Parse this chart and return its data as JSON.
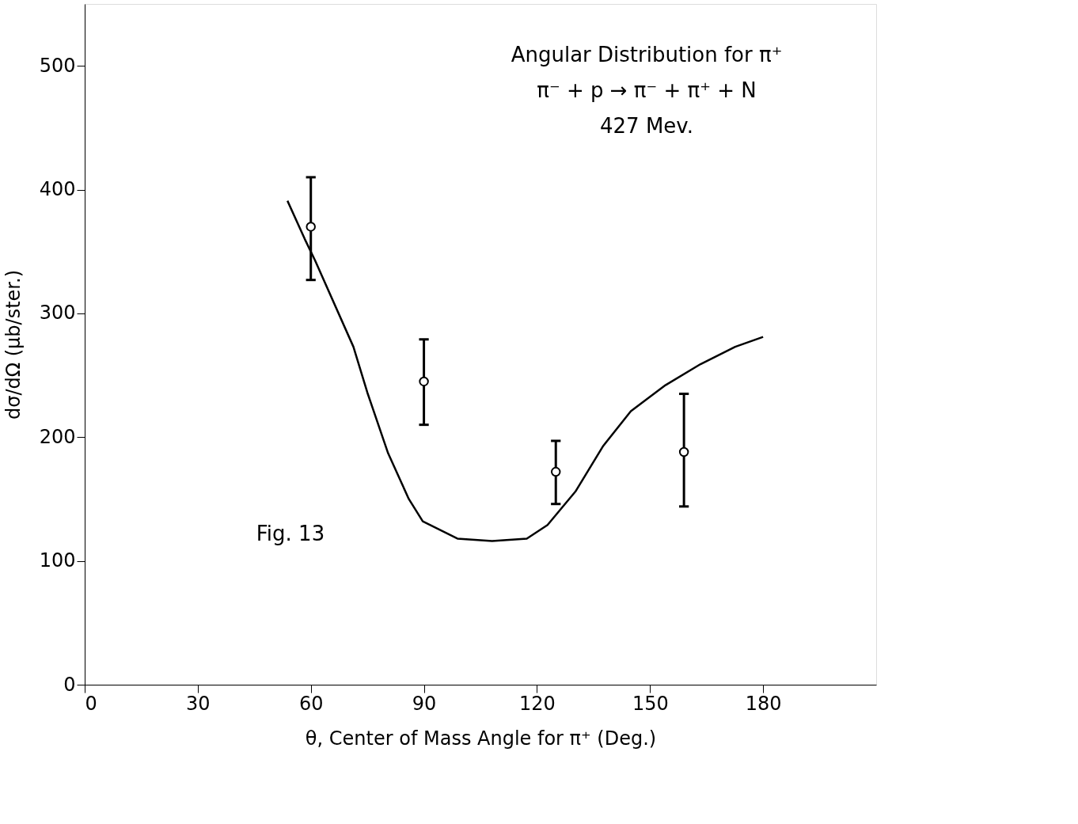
{
  "chart_data": {
    "type": "scatter",
    "title": "Angular Distribution for π⁺",
    "subtitle": "π⁻ + p → π⁻ + π⁺ + N",
    "annotations": [
      "427 Mev.",
      "Fig. 13"
    ],
    "xlabel": "θ, Center of Mass Angle for π⁺ (Deg.)",
    "ylabel": "dσ/dΩ (μb/ster.)",
    "xlim": [
      0,
      210
    ],
    "ylim": [
      0,
      550
    ],
    "xticks": [
      0,
      30,
      60,
      90,
      120,
      150,
      180
    ],
    "yticks": [
      0,
      100,
      200,
      300,
      400,
      500
    ],
    "grid": false,
    "series": [
      {
        "color": "#000000",
        "marker": "circle",
        "x": [
          60,
          90,
          125,
          159
        ],
        "values": [
          370,
          245,
          172,
          188
        ],
        "errors": [
          [
            327,
            410
          ],
          [
            210,
            279
          ],
          [
            146,
            197
          ],
          [
            144,
            235
          ]
        ]
      },
      {
        "type": "line",
        "color": "#000000",
        "line_style": "solid",
        "x": [
          53.8,
          58.4,
          61.1,
          71.3,
          75,
          80.5,
          86,
          89.7,
          98.9,
          108.1,
          117.3,
          122.8,
          130.2,
          137.6,
          144.9,
          154.1,
          163.4,
          172.6,
          180
        ],
        "values": [
          391,
          360,
          343,
          273,
          236,
          187,
          150,
          132,
          118,
          116,
          118,
          129,
          156,
          193,
          221,
          242,
          259,
          273,
          281
        ]
      }
    ]
  }
}
